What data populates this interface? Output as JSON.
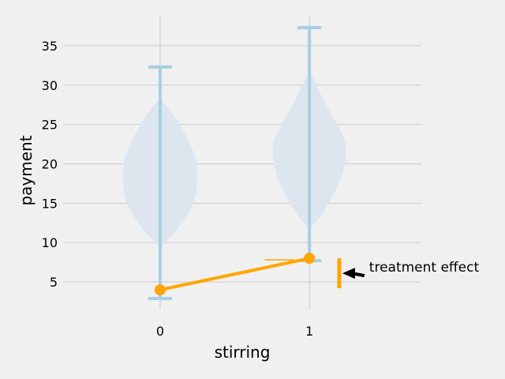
{
  "chart_data": {
    "type": "violin",
    "title": "",
    "xlabel": "stirring",
    "ylabel": "payment",
    "xlim": [
      -0.65,
      1.75
    ],
    "ylim": [
      1.5,
      38.8
    ],
    "grid": true,
    "x_ticks": [
      0,
      1
    ],
    "x_tick_labels": [
      "0",
      "1"
    ],
    "y_ticks": [
      5,
      10,
      15,
      20,
      25,
      30,
      35
    ],
    "y_tick_labels": [
      "5",
      "10",
      "15",
      "20",
      "25",
      "30",
      "35"
    ],
    "violins": [
      {
        "x": 0,
        "min": 2.9,
        "max": 32.3,
        "profile": [
          [
            9.5,
            0.0
          ],
          [
            10.5,
            0.06
          ],
          [
            12,
            0.13
          ],
          [
            14,
            0.2
          ],
          [
            16,
            0.24
          ],
          [
            18,
            0.25
          ],
          [
            19.5,
            0.25
          ],
          [
            21,
            0.235
          ],
          [
            23,
            0.19
          ],
          [
            25,
            0.13
          ],
          [
            26.5,
            0.08
          ],
          [
            27.5,
            0.04
          ],
          [
            28.3,
            0.0
          ]
        ]
      },
      {
        "x": 1,
        "min": 7.7,
        "max": 37.3,
        "profile": [
          [
            11.8,
            0.0
          ],
          [
            12.5,
            0.04
          ],
          [
            14,
            0.1
          ],
          [
            16,
            0.16
          ],
          [
            18,
            0.21
          ],
          [
            20,
            0.24
          ],
          [
            22,
            0.25
          ],
          [
            23.5,
            0.23
          ],
          [
            25.5,
            0.17
          ],
          [
            27.5,
            0.11
          ],
          [
            29.5,
            0.06
          ],
          [
            31,
            0.02
          ],
          [
            32,
            0.0
          ]
        ]
      }
    ],
    "colors": {
      "violin_fill": "#dde6ee",
      "whisker": "#a8cee5",
      "effect": "#ffa500"
    },
    "means_line": {
      "points": [
        [
          0,
          4.0
        ],
        [
          1,
          8.0
        ]
      ]
    },
    "effect_bar": {
      "x": 1.2,
      "from": 4.2,
      "to": 8.0
    },
    "annotation": {
      "text": "treatment effect",
      "arrow_to": [
        1.2,
        6.1
      ],
      "text_at": [
        1.4,
        6.1
      ]
    }
  }
}
